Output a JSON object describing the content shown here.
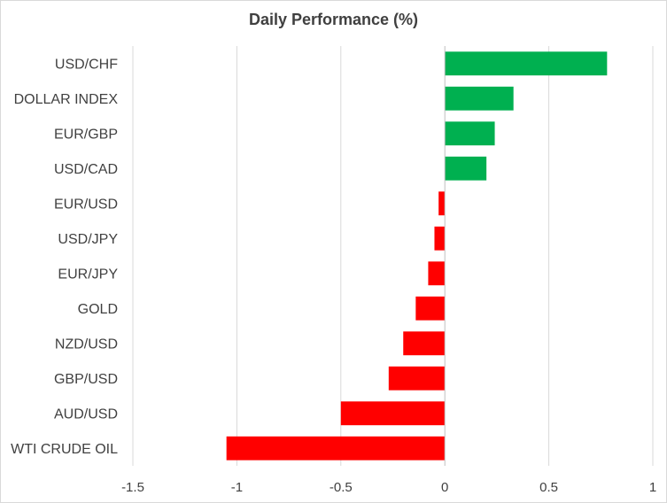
{
  "chart_data": {
    "type": "bar",
    "orientation": "horizontal",
    "title": "Daily Performance (%)",
    "xlabel": "",
    "ylabel": "",
    "categories": [
      "USD/CHF",
      "DOLLAR INDEX",
      "EUR/GBP",
      "USD/CAD",
      "EUR/USD",
      "USD/JPY",
      "EUR/JPY",
      "GOLD",
      "NZD/USD",
      "GBP/USD",
      "AUD/USD",
      "WTI CRUDE OIL"
    ],
    "values": [
      0.78,
      0.33,
      0.24,
      0.2,
      -0.03,
      -0.05,
      -0.08,
      -0.14,
      -0.2,
      -0.27,
      -0.5,
      -1.05
    ],
    "xlim": [
      -1.5,
      1
    ],
    "xticks": [
      -1.5,
      -1,
      -0.5,
      0,
      0.5,
      1
    ],
    "xtick_labels": [
      "-1.5",
      "-1",
      "-0.5",
      "0",
      "0.5",
      "1"
    ],
    "grid": "vertical gridlines",
    "legend": "none",
    "colors": {
      "positive": "#00b050",
      "negative": "#ff0000",
      "grid": "#d9d9d9",
      "text": "#404040"
    }
  }
}
